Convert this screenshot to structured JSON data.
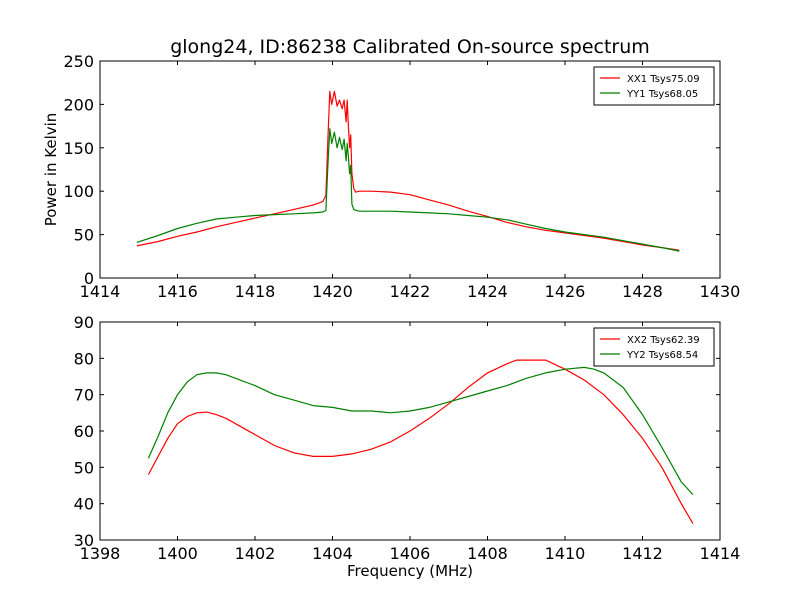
{
  "title": "glong24, ID:86238 Calibrated On-source spectrum",
  "chart_data": [
    {
      "type": "line",
      "title": "glong24, ID:86238 Calibrated On-source spectrum",
      "xlabel": "",
      "ylabel": "Power in Kelvin",
      "xlim": [
        1414,
        1430
      ],
      "ylim": [
        0,
        250
      ],
      "xticks": [
        1414,
        1416,
        1418,
        1420,
        1422,
        1424,
        1426,
        1428,
        1430
      ],
      "yticks": [
        0,
        50,
        100,
        150,
        200,
        250
      ],
      "legend_position": "top-right",
      "grid": false,
      "series": [
        {
          "name": "XX1 Tsys75.09",
          "color": "#ff0000",
          "x": [
            1414.95,
            1415.5,
            1416.0,
            1416.5,
            1417.0,
            1417.5,
            1418.0,
            1418.5,
            1419.0,
            1419.5,
            1419.75,
            1419.83,
            1419.88,
            1419.93,
            1419.98,
            1420.05,
            1420.12,
            1420.18,
            1420.25,
            1420.3,
            1420.35,
            1420.38,
            1420.41,
            1420.44,
            1420.47,
            1420.5,
            1420.55,
            1420.6,
            1420.7,
            1421.0,
            1421.5,
            1422.0,
            1422.5,
            1423.0,
            1423.5,
            1424.0,
            1424.5,
            1425.0,
            1425.5,
            1426.0,
            1426.5,
            1427.0,
            1427.5,
            1428.0,
            1428.5,
            1428.95
          ],
          "y": [
            37,
            42,
            48,
            53,
            59,
            64,
            69,
            74,
            79,
            84,
            88,
            95,
            160,
            215,
            200,
            215,
            198,
            205,
            195,
            205,
            180,
            205,
            175,
            150,
            165,
            120,
            103,
            99,
            100,
            100,
            99,
            96,
            90,
            84,
            77,
            71,
            64,
            59,
            55,
            52,
            49,
            46,
            42,
            38,
            35,
            32
          ]
        },
        {
          "name": "YY1 Tsys68.05",
          "color": "#008000",
          "x": [
            1414.95,
            1415.5,
            1416.0,
            1416.5,
            1417.0,
            1417.5,
            1418.0,
            1418.5,
            1419.0,
            1419.5,
            1419.75,
            1419.83,
            1419.88,
            1419.93,
            1419.98,
            1420.05,
            1420.12,
            1420.18,
            1420.25,
            1420.3,
            1420.35,
            1420.38,
            1420.41,
            1420.44,
            1420.47,
            1420.5,
            1420.55,
            1420.6,
            1420.7,
            1421.0,
            1421.5,
            1422.0,
            1422.5,
            1423.0,
            1423.5,
            1424.0,
            1424.5,
            1425.0,
            1425.5,
            1426.0,
            1426.5,
            1427.0,
            1427.5,
            1428.0,
            1428.5,
            1428.95
          ],
          "y": [
            41,
            49,
            57,
            63,
            68,
            70,
            72,
            73,
            74,
            75,
            76,
            78,
            130,
            172,
            155,
            168,
            150,
            162,
            148,
            160,
            135,
            155,
            140,
            120,
            130,
            85,
            79,
            78,
            77,
            77,
            77,
            76,
            75,
            74,
            72,
            70,
            67,
            62,
            57,
            53,
            50,
            47,
            43,
            39,
            35,
            31
          ]
        }
      ]
    },
    {
      "type": "line",
      "title": "",
      "xlabel": "Frequency (MHz)",
      "ylabel": "",
      "xlim": [
        1398,
        1414
      ],
      "ylim": [
        30,
        90
      ],
      "xticks": [
        1398,
        1400,
        1402,
        1404,
        1406,
        1408,
        1410,
        1412,
        1414
      ],
      "yticks": [
        30,
        40,
        50,
        60,
        70,
        80,
        90
      ],
      "legend_position": "top-right",
      "grid": false,
      "series": [
        {
          "name": "XX2 Tsys62.39",
          "color": "#ff0000",
          "x": [
            1399.25,
            1399.5,
            1399.75,
            1400.0,
            1400.25,
            1400.5,
            1400.75,
            1401.0,
            1401.25,
            1401.5,
            1401.75,
            1402.0,
            1402.5,
            1403.0,
            1403.5,
            1404.0,
            1404.5,
            1405.0,
            1405.5,
            1406.0,
            1406.5,
            1407.0,
            1407.5,
            1408.0,
            1408.5,
            1408.75,
            1409.0,
            1409.5,
            1410.0,
            1410.5,
            1411.0,
            1411.5,
            1412.0,
            1412.5,
            1413.0,
            1413.3
          ],
          "y": [
            48,
            53,
            58,
            62,
            64,
            65,
            65.2,
            64.5,
            63.5,
            62,
            60.5,
            59,
            56,
            54,
            53,
            53,
            53.7,
            55,
            57,
            60,
            63.5,
            67.5,
            72,
            76,
            78.5,
            79.5,
            79.5,
            79.5,
            77,
            74,
            70,
            64.5,
            58,
            50,
            40,
            34.5
          ]
        },
        {
          "name": "YY2 Tsys68.54",
          "color": "#008000",
          "x": [
            1399.25,
            1399.5,
            1399.75,
            1400.0,
            1400.25,
            1400.5,
            1400.75,
            1401.0,
            1401.25,
            1401.5,
            1401.75,
            1402.0,
            1402.5,
            1403.0,
            1403.5,
            1404.0,
            1404.5,
            1405.0,
            1405.5,
            1406.0,
            1406.5,
            1407.0,
            1407.5,
            1408.0,
            1408.5,
            1409.0,
            1409.5,
            1410.0,
            1410.5,
            1410.75,
            1411.0,
            1411.5,
            1412.0,
            1412.5,
            1413.0,
            1413.3
          ],
          "y": [
            52.5,
            58.5,
            65,
            70,
            73.5,
            75.5,
            76,
            76,
            75.5,
            74.5,
            73.5,
            72.5,
            70,
            68.5,
            67,
            66.5,
            65.5,
            65.5,
            65,
            65.5,
            66.5,
            68,
            69.5,
            71,
            72.5,
            74.5,
            76,
            77,
            77.5,
            77,
            76,
            72,
            64.5,
            55.5,
            46,
            42.5
          ]
        }
      ]
    }
  ]
}
